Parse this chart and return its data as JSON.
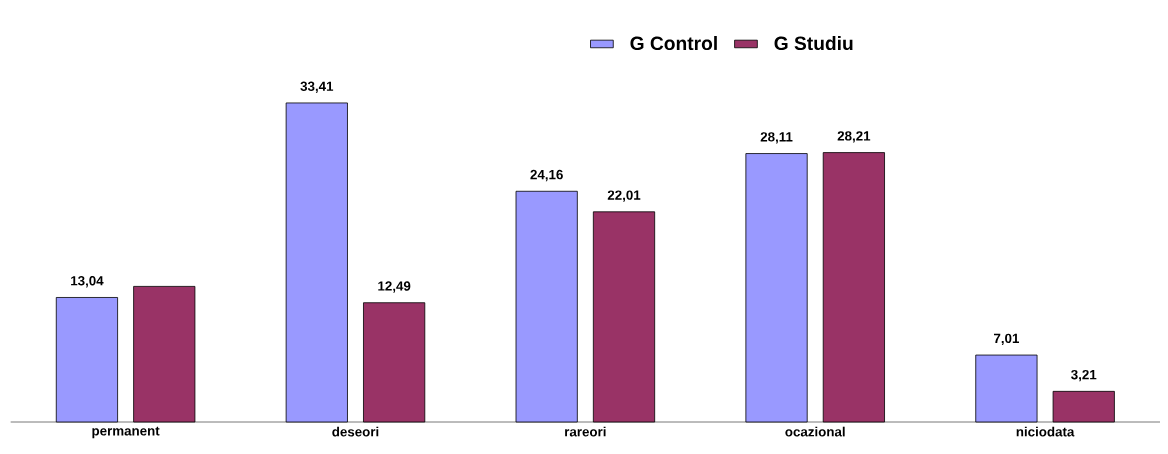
{
  "chart_data": {
    "type": "bar",
    "categories": [
      "permanent",
      "deseori",
      "rareori",
      "ocazional",
      "niciodata"
    ],
    "series": [
      {
        "name": "G Control",
        "color": "#9999ff",
        "values": [
          13.04,
          33.41,
          24.16,
          28.11,
          7.01
        ],
        "value_labels": [
          "13,04",
          "33,41",
          "24,16",
          "28,11",
          "7,01"
        ]
      },
      {
        "name": "G Studiu",
        "color": "#993366",
        "values": [
          14.2,
          12.49,
          22.01,
          28.21,
          3.21
        ],
        "value_labels": [
          null,
          "12,49",
          "22,01",
          "28,21",
          "3,21"
        ]
      }
    ],
    "legend": "top"
  }
}
